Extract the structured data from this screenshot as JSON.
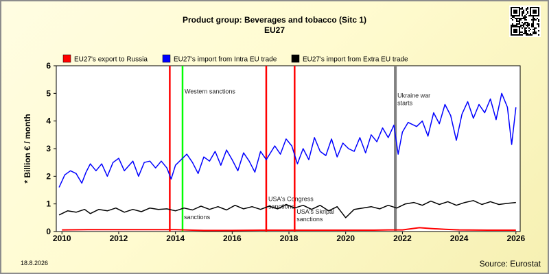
{
  "chart_data": {
    "type": "line",
    "title": "Product group: Beverages and tobacco (Sitc 1)",
    "subtitle": "EU27",
    "ylabel": "* Billion € / month",
    "xlabel": "",
    "xlim": [
      2009.8,
      2026.15
    ],
    "ylim": [
      0,
      6
    ],
    "x_ticks": [
      "2010",
      "2012",
      "2014",
      "2016",
      "2018",
      "2020",
      "2022",
      "2024",
      "2026"
    ],
    "y_ticks": [
      "0",
      "1",
      "2",
      "3",
      "4",
      "5",
      "6"
    ],
    "grid": false,
    "legend_position": "top",
    "series": [
      {
        "name": "EU27's export to Russia",
        "color": "#ff0000",
        "x": [
          2010.0,
          2011.0,
          2012.0,
          2013.0,
          2014.0,
          2014.6,
          2015.0,
          2016.0,
          2017.0,
          2018.0,
          2019.0,
          2020.0,
          2021.0,
          2021.5,
          2022.0,
          2022.3,
          2022.6,
          2023.0,
          2023.5,
          2024.0,
          2025.0,
          2026.0
        ],
        "values": [
          0.06,
          0.07,
          0.07,
          0.07,
          0.07,
          0.05,
          0.04,
          0.04,
          0.05,
          0.05,
          0.05,
          0.05,
          0.05,
          0.06,
          0.06,
          0.1,
          0.14,
          0.11,
          0.08,
          0.06,
          0.05,
          0.05
        ]
      },
      {
        "name": "EU27's import from Intra EU trade",
        "color": "#0000ff",
        "x": [
          2009.9,
          2010.1,
          2010.3,
          2010.5,
          2010.7,
          2010.85,
          2011.0,
          2011.2,
          2011.4,
          2011.6,
          2011.8,
          2012.0,
          2012.2,
          2012.5,
          2012.7,
          2012.9,
          2013.1,
          2013.3,
          2013.5,
          2013.7,
          2013.85,
          2014.0,
          2014.2,
          2014.4,
          2014.6,
          2014.8,
          2015.0,
          2015.2,
          2015.4,
          2015.6,
          2015.8,
          2016.0,
          2016.2,
          2016.4,
          2016.6,
          2016.8,
          2017.0,
          2017.2,
          2017.5,
          2017.7,
          2017.9,
          2018.1,
          2018.3,
          2018.5,
          2018.7,
          2018.9,
          2019.1,
          2019.3,
          2019.5,
          2019.7,
          2019.9,
          2020.1,
          2020.3,
          2020.5,
          2020.7,
          2020.9,
          2021.1,
          2021.3,
          2021.5,
          2021.7,
          2021.85,
          2022.0,
          2022.2,
          2022.5,
          2022.7,
          2022.9,
          2023.1,
          2023.3,
          2023.5,
          2023.7,
          2023.9,
          2024.1,
          2024.3,
          2024.5,
          2024.7,
          2024.9,
          2025.1,
          2025.3,
          2025.5,
          2025.7,
          2025.85,
          2026.0
        ],
        "values": [
          1.6,
          2.05,
          2.2,
          2.1,
          1.75,
          2.15,
          2.45,
          2.2,
          2.45,
          2.0,
          2.5,
          2.65,
          2.2,
          2.55,
          2.0,
          2.5,
          2.55,
          2.3,
          2.55,
          2.3,
          1.9,
          2.4,
          2.6,
          2.8,
          2.5,
          2.1,
          2.7,
          2.55,
          2.9,
          2.4,
          2.95,
          2.6,
          2.2,
          2.85,
          2.55,
          2.15,
          2.9,
          2.6,
          3.1,
          2.8,
          3.35,
          3.1,
          2.45,
          3.0,
          2.6,
          3.4,
          2.9,
          2.75,
          3.35,
          2.7,
          3.2,
          3.0,
          2.9,
          3.4,
          2.85,
          3.5,
          3.25,
          3.75,
          3.4,
          3.85,
          2.8,
          3.6,
          3.95,
          3.8,
          4.0,
          3.45,
          4.3,
          3.9,
          4.6,
          4.2,
          3.3,
          4.25,
          4.7,
          4.1,
          4.6,
          4.3,
          4.8,
          4.05,
          5.0,
          4.5,
          3.15,
          4.5
        ]
      },
      {
        "name": "EU27's import from Extra EU trade",
        "color": "#000000",
        "x": [
          2009.9,
          2010.2,
          2010.5,
          2010.8,
          2011.0,
          2011.3,
          2011.6,
          2011.9,
          2012.2,
          2012.5,
          2012.8,
          2013.1,
          2013.4,
          2013.7,
          2014.0,
          2014.3,
          2014.6,
          2014.9,
          2015.2,
          2015.5,
          2015.8,
          2016.1,
          2016.4,
          2016.7,
          2017.0,
          2017.3,
          2017.6,
          2017.9,
          2018.2,
          2018.5,
          2018.8,
          2019.1,
          2019.4,
          2019.7,
          2020.0,
          2020.3,
          2020.6,
          2020.9,
          2021.2,
          2021.5,
          2021.8,
          2022.1,
          2022.4,
          2022.7,
          2023.0,
          2023.3,
          2023.6,
          2023.9,
          2024.2,
          2024.5,
          2024.8,
          2025.1,
          2025.4,
          2025.7,
          2026.0
        ],
        "values": [
          0.6,
          0.75,
          0.7,
          0.8,
          0.65,
          0.8,
          0.75,
          0.85,
          0.7,
          0.8,
          0.72,
          0.85,
          0.8,
          0.82,
          0.75,
          0.85,
          0.78,
          0.92,
          0.8,
          0.9,
          0.78,
          0.95,
          0.82,
          0.9,
          0.8,
          0.92,
          0.82,
          0.98,
          0.85,
          0.95,
          0.8,
          0.95,
          0.75,
          0.9,
          0.5,
          0.8,
          0.85,
          0.9,
          0.82,
          0.95,
          0.85,
          1.0,
          1.05,
          0.95,
          1.1,
          0.98,
          1.08,
          0.95,
          1.05,
          1.12,
          0.98,
          1.08,
          0.98,
          1.02,
          1.05
        ]
      }
    ],
    "events": [
      {
        "label": "Western sanctions",
        "x": 2014.25,
        "color": "#00ff00",
        "label_y": 5.0
      },
      {
        "label": "",
        "x": 2013.8,
        "color": "#ff0000",
        "label_y": null
      },
      {
        "label": "USA's Congress sanctions",
        "x": 2017.2,
        "color": "#ff0000",
        "label_y": 1.1
      },
      {
        "label": "USA's Skripal sanctions",
        "x": 2018.2,
        "color": "#ff0000",
        "label_y": 0.65
      },
      {
        "label": "Ukraine war starts",
        "x": 2021.75,
        "color": "#808080",
        "label_y": 4.85
      }
    ],
    "annotations": [
      {
        "label": "sanctions",
        "x": 2014.3,
        "y": 0.45
      }
    ]
  },
  "footer": {
    "date": "18.8.2026",
    "source": "Source: Eurostat"
  },
  "qr_icon": "qr-code-icon"
}
